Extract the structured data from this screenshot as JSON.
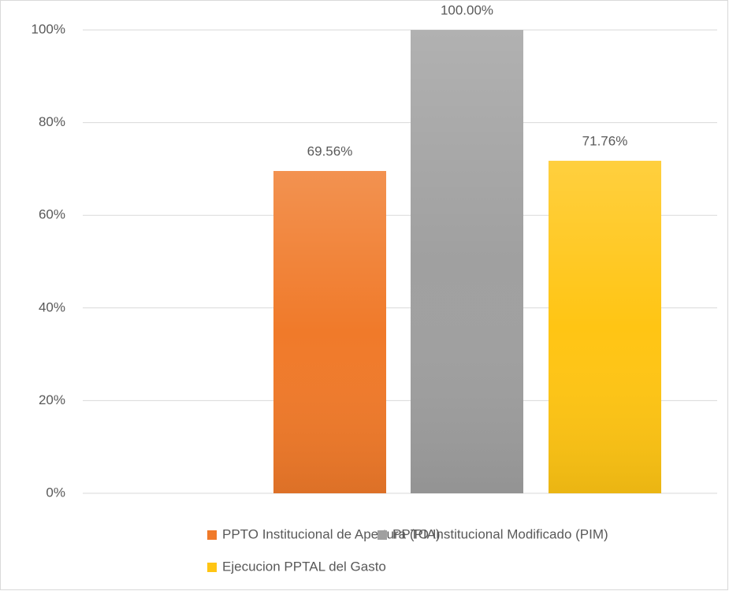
{
  "chart_data": {
    "type": "bar",
    "categories": [
      null
    ],
    "series": [
      {
        "name": "PPTO Institucional de Apertura (PIA)",
        "color": "#f07a2a",
        "values": [
          69.56
        ],
        "value_labels": [
          "69.56%"
        ]
      },
      {
        "name": "PPTO Institucional Modificado (PIM)",
        "color": "#a0a0a0",
        "values": [
          100
        ],
        "value_labels": [
          "100.00%"
        ]
      },
      {
        "name": "Ejecucion PPTAL del Gasto",
        "color": "#ffc514",
        "values": [
          71.76
        ],
        "value_labels": [
          "71.76%"
        ]
      }
    ],
    "ylim": [
      0,
      100
    ],
    "yticks": [
      {
        "value": 0,
        "label": "0%"
      },
      {
        "value": 20,
        "label": "20%"
      },
      {
        "value": 40,
        "label": "40%"
      },
      {
        "value": 60,
        "label": "60%"
      },
      {
        "value": 80,
        "label": "80%"
      },
      {
        "value": 100,
        "label": "100%"
      }
    ],
    "grid": true
  }
}
